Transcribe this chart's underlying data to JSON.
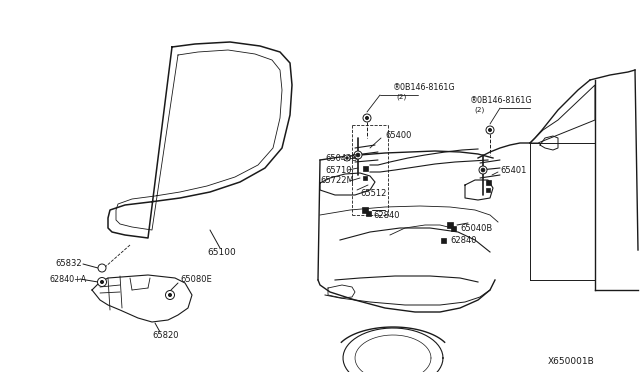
{
  "bg_color": "#ffffff",
  "line_color": "#1a1a1a",
  "text_color": "#1a1a1a",
  "diagram_id": "X650001B",
  "figsize": [
    6.4,
    3.72
  ],
  "dpi": 100,
  "labels": {
    "part_65100": "65100",
    "part_65832": "65832",
    "part_62840A": "62840+A",
    "part_65080E": "65080E",
    "part_65820": "65820",
    "part_bolt1": "®0B146-8161G",
    "part_bolt1_qty": "(2)",
    "part_65400": "65400",
    "part_65040B_L": "65040B",
    "part_65710": "65710",
    "part_65722M": "65722M",
    "part_65512": "65512",
    "part_62840_L": "62840",
    "part_bolt2": "®0B146-8161G",
    "part_bolt2_qty": "(2)",
    "part_65401": "65401",
    "part_65040B_R": "65040B",
    "part_62840_R": "62840",
    "diagram_id": "X650001B"
  }
}
